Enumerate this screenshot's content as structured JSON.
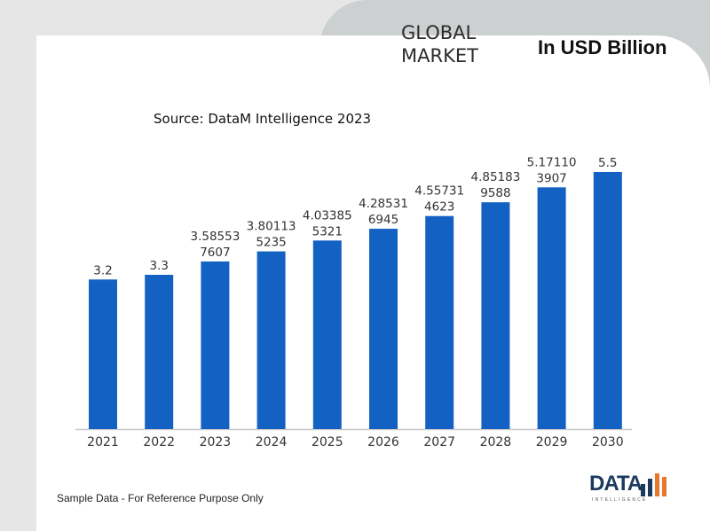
{
  "header": {
    "global_label": "GLOBAL\nMARKET",
    "unit_label": "In USD Billion"
  },
  "source_label": "Source: DataM Intelligence 2023",
  "footer_note": "Sample Data - For Reference Purpose Only",
  "logo": {
    "text": "DATA",
    "subtext": "INTELLIGENCE"
  },
  "colors": {
    "bar": "#1461c4",
    "header_pill": "#cdd0d1",
    "logo_orange": "#e8762c",
    "logo_navy": "#1c3a5e"
  },
  "chart_data": {
    "type": "bar",
    "categories": [
      "2021",
      "2022",
      "2023",
      "2024",
      "2025",
      "2026",
      "2027",
      "2028",
      "2029",
      "2030"
    ],
    "values": [
      3.2,
      3.3,
      3.585537607,
      3.801135235,
      4.033855321,
      4.285316945,
      4.557314623,
      4.851839588,
      5.171103907,
      5.5
    ],
    "data_labels": [
      [
        "3.2"
      ],
      [
        "3.3"
      ],
      [
        "3.58553",
        "7607"
      ],
      [
        "3.80113",
        "5235"
      ],
      [
        "4.03385",
        "5321"
      ],
      [
        "4.28531",
        "6945"
      ],
      [
        "4.55731",
        "4623"
      ],
      [
        "4.85183",
        "9588"
      ],
      [
        "5.17110",
        "3907"
      ],
      [
        "5.5"
      ]
    ],
    "title": "",
    "xlabel": "",
    "ylabel": "",
    "ylim": [
      0,
      5.5
    ],
    "grid": false,
    "legend": "none"
  }
}
